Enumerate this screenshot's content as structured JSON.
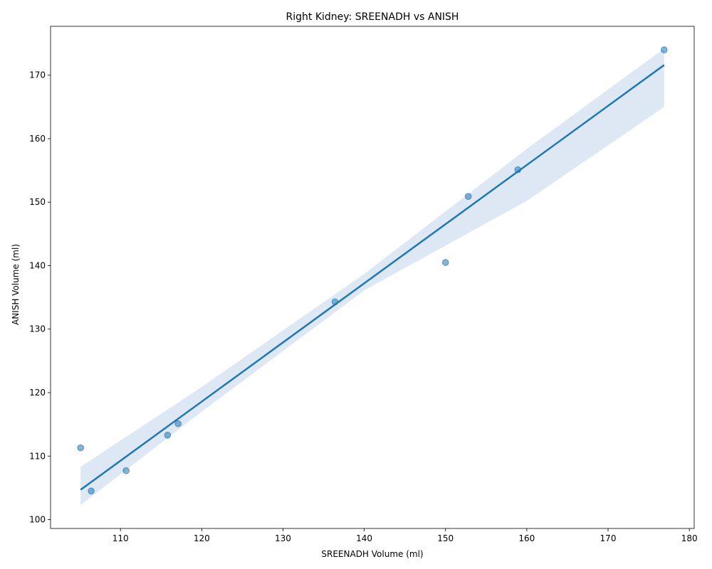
{
  "chart_data": {
    "type": "scatter",
    "title": "Right Kidney: SREENADH vs ANISH",
    "xlabel": "SREENADH Volume (ml)",
    "ylabel": "ANISH Volume (ml)",
    "xlim": [
      101.4,
      180.6
    ],
    "ylim": [
      98.6,
      177.7
    ],
    "xticks": [
      110,
      120,
      130,
      140,
      150,
      160,
      170,
      180
    ],
    "yticks": [
      100,
      110,
      120,
      130,
      140,
      150,
      160,
      170
    ],
    "grid": false,
    "points": [
      {
        "x": 105.1,
        "y": 111.3
      },
      {
        "x": 106.4,
        "y": 104.5
      },
      {
        "x": 110.7,
        "y": 107.7
      },
      {
        "x": 115.8,
        "y": 113.3
      },
      {
        "x": 117.1,
        "y": 115.1
      },
      {
        "x": 136.4,
        "y": 134.3
      },
      {
        "x": 150.0,
        "y": 140.5
      },
      {
        "x": 152.8,
        "y": 150.9
      },
      {
        "x": 158.9,
        "y": 155.1
      },
      {
        "x": 176.9,
        "y": 174.0
      }
    ],
    "regression": {
      "x_start": 105.1,
      "y_start": 104.7,
      "x_end": 176.9,
      "y_end": 171.6
    },
    "confidence_band": [
      {
        "x": 105.1,
        "lower": 102.3,
        "upper": 108.3
      },
      {
        "x": 120.0,
        "lower": 117.0,
        "upper": 120.9
      },
      {
        "x": 140.0,
        "lower": 136.1,
        "upper": 138.7
      },
      {
        "x": 160.0,
        "lower": 150.2,
        "upper": 158.4
      },
      {
        "x": 176.9,
        "lower": 165.0,
        "upper": 174.2
      }
    ],
    "colors": {
      "points": "#1f77b4",
      "line": "#1f77b4",
      "band": "#dde8f4"
    }
  }
}
